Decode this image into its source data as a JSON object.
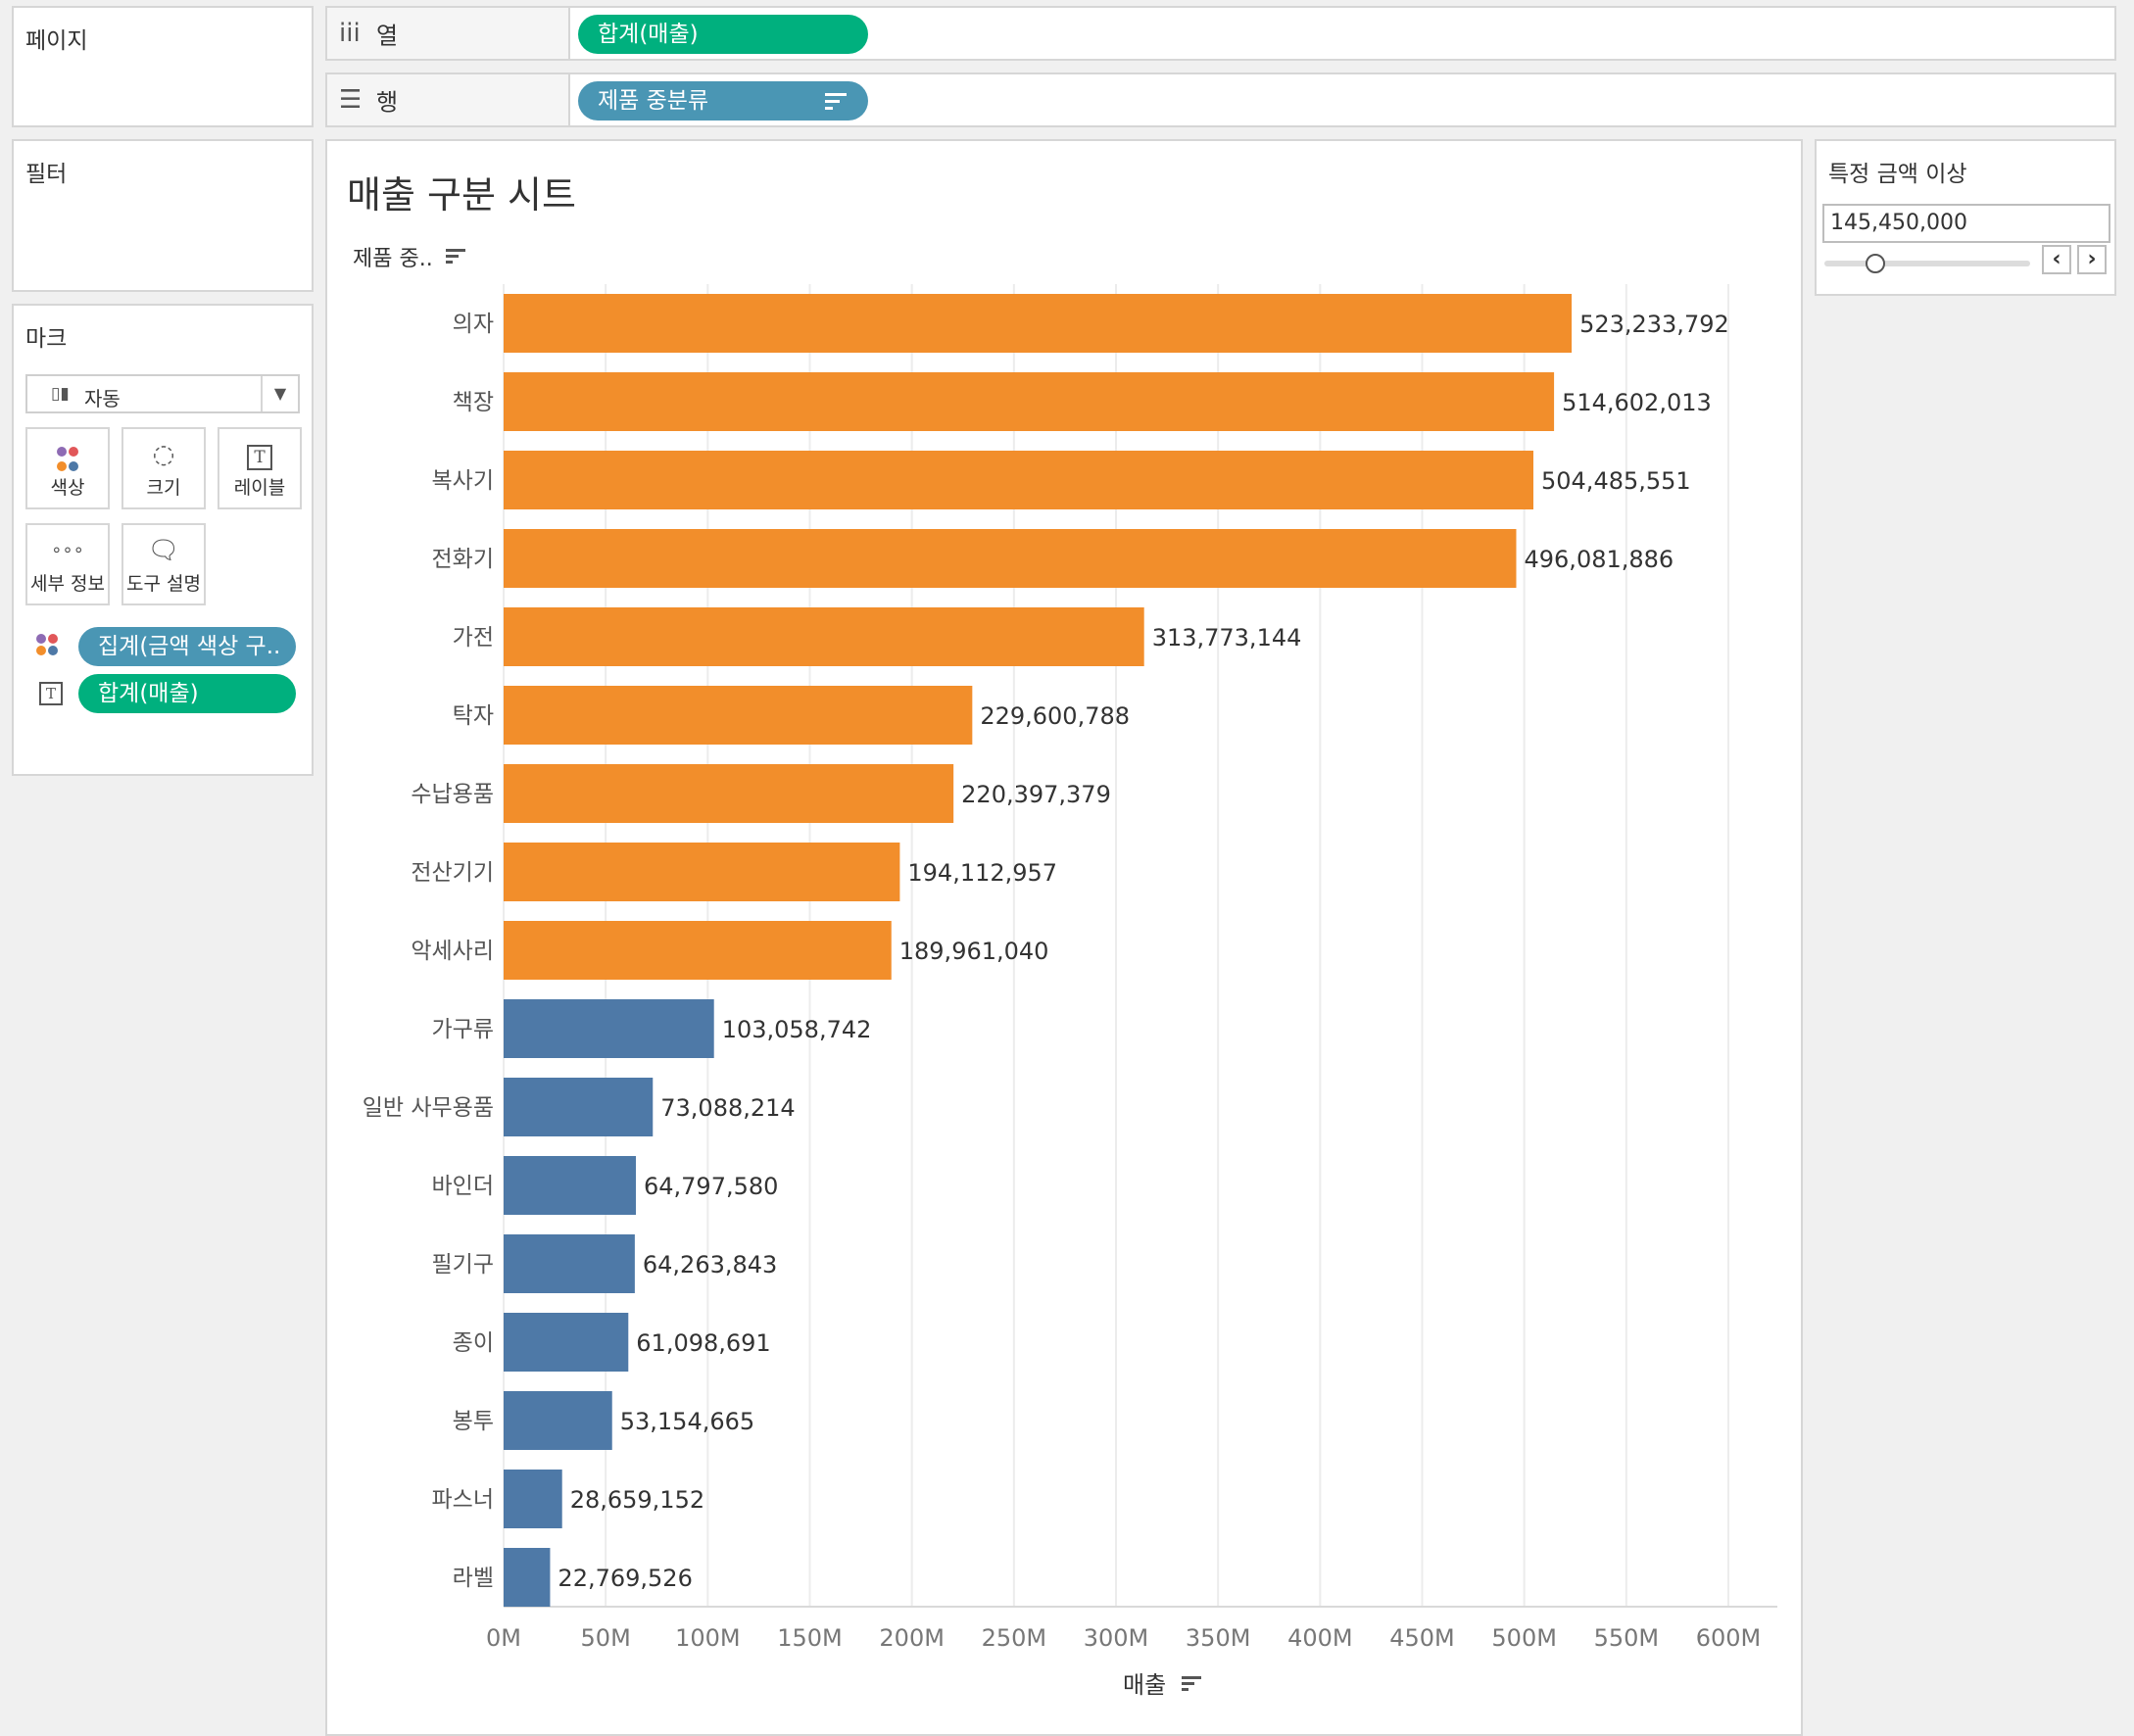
{
  "pages_panel": {
    "title": "페이지"
  },
  "filters_panel": {
    "title": "필터"
  },
  "marks_panel": {
    "title": "마크",
    "mark_type": "자동",
    "buttons": [
      "색상",
      "크기",
      "레이블",
      "세부 정보",
      "도구 설명"
    ],
    "fields": [
      {
        "label": "집계(금액 색상 구..",
        "color": "#4a96b4"
      },
      {
        "label": "합계(매출)",
        "color": "#00b07e"
      }
    ]
  },
  "columns_shelf": {
    "label": "열",
    "pill": "합계(매출)"
  },
  "rows_shelf": {
    "label": "행",
    "pill": "제품 중분류"
  },
  "sheet": {
    "title": "매출 구분 시트",
    "row_header": "제품 중.."
  },
  "parameter": {
    "title": "특정 금액 이상",
    "value": "145,450,000",
    "prev": "‹",
    "next": "›"
  },
  "chart_data": {
    "type": "bar",
    "orientation": "horizontal",
    "categories": [
      "의자",
      "책장",
      "복사기",
      "전화기",
      "가전",
      "탁자",
      "수납용품",
      "전산기기",
      "악세사리",
      "가구류",
      "일반 사무용품",
      "바인더",
      "필기구",
      "종이",
      "봉투",
      "파스너",
      "라벨"
    ],
    "values": [
      523233792,
      514602013,
      504485551,
      496081886,
      313773144,
      229600788,
      220397379,
      194112957,
      189961040,
      103058742,
      73088214,
      64797580,
      64263843,
      61098691,
      53154665,
      28659152,
      22769526
    ],
    "value_labels": [
      "523,233,792",
      "514,602,013",
      "504,485,551",
      "496,081,886",
      "313,773,144",
      "229,600,788",
      "220,397,379",
      "194,112,957",
      "189,961,040",
      "103,058,742",
      "73,088,214",
      "64,797,580",
      "64,263,843",
      "61,098,691",
      "53,154,665",
      "28,659,152",
      "22,769,526"
    ],
    "colors": {
      "above": "#f28e2b",
      "below": "#4e79a7"
    },
    "threshold": 145450000,
    "xlim": [
      0,
      600000000
    ],
    "xticks": [
      "0M",
      "50M",
      "100M",
      "150M",
      "200M",
      "250M",
      "300M",
      "350M",
      "400M",
      "450M",
      "500M",
      "550M",
      "600M"
    ],
    "xlabel": "매출",
    "grid": true
  }
}
